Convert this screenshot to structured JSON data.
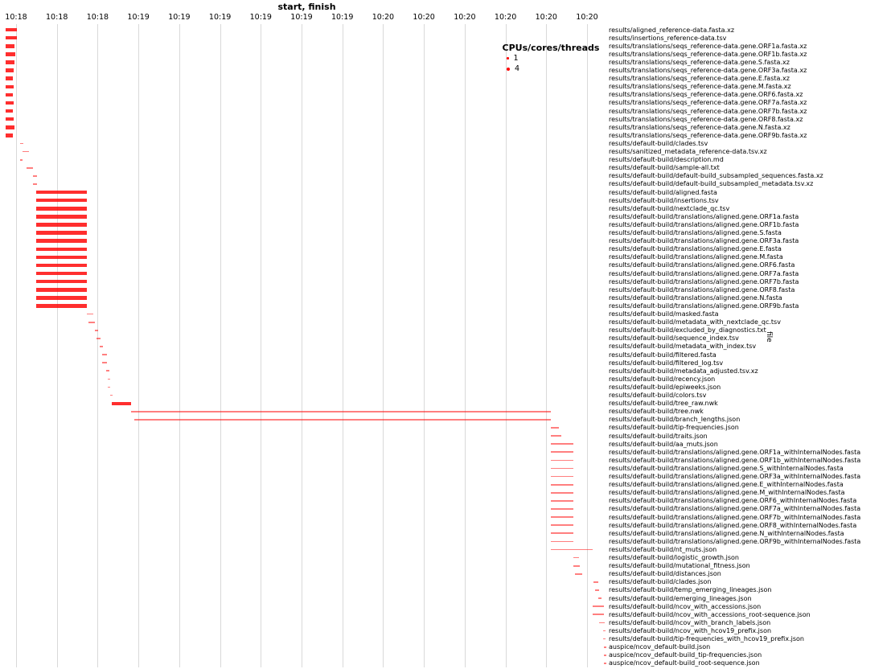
{
  "chart_data": {
    "type": "gantt",
    "title": "start, finish",
    "ylabel_right": "file",
    "time_axis_note": "clock times, ticks every 10 seconds",
    "tick_interval_sec": 10,
    "x_range_sec": [
      27,
      176
    ],
    "bar_color": "#ff0000",
    "x_ticks": [
      {
        "sec": 30,
        "label": "10:18"
      },
      {
        "sec": 40,
        "label": "10:18"
      },
      {
        "sec": 50,
        "label": "10:18"
      },
      {
        "sec": 60,
        "label": "10:19"
      },
      {
        "sec": 70,
        "label": "10:19"
      },
      {
        "sec": 80,
        "label": "10:19"
      },
      {
        "sec": 90,
        "label": "10:19"
      },
      {
        "sec": 100,
        "label": "10:19"
      },
      {
        "sec": 110,
        "label": "10:19"
      },
      {
        "sec": 120,
        "label": "10:20"
      },
      {
        "sec": 130,
        "label": "10:20"
      },
      {
        "sec": 140,
        "label": "10:20"
      },
      {
        "sec": 150,
        "label": "10:20"
      },
      {
        "sec": 160,
        "label": "10:20"
      },
      {
        "sec": 170,
        "label": "10:20"
      }
    ],
    "legend": {
      "title": "CPUs/cores/threads",
      "items": [
        {
          "label": "1",
          "size": 2.5
        },
        {
          "label": "4",
          "size": 4
        }
      ]
    },
    "rows": [
      {
        "file": "results/aligned_reference-data.fasta.xz",
        "start": 27.4,
        "end": 30.2,
        "threads": 4
      },
      {
        "file": "results/insertions_reference-data.tsv",
        "start": 27.4,
        "end": 30.2,
        "threads": 4
      },
      {
        "file": "results/translations/seqs_reference-data.gene.ORF1a.fasta.xz",
        "start": 27.4,
        "end": 29.7,
        "threads": 4
      },
      {
        "file": "results/translations/seqs_reference-data.gene.ORF1b.fasta.xz",
        "start": 27.4,
        "end": 29.8,
        "threads": 4
      },
      {
        "file": "results/translations/seqs_reference-data.gene.S.fasta.xz",
        "start": 27.4,
        "end": 29.6,
        "threads": 4
      },
      {
        "file": "results/translations/seqs_reference-data.gene.ORF3a.fasta.xz",
        "start": 27.4,
        "end": 29.4,
        "threads": 4
      },
      {
        "file": "results/translations/seqs_reference-data.gene.E.fasta.xz",
        "start": 27.4,
        "end": 29.3,
        "threads": 4
      },
      {
        "file": "results/translations/seqs_reference-data.gene.M.fasta.xz",
        "start": 27.4,
        "end": 29.5,
        "threads": 4
      },
      {
        "file": "results/translations/seqs_reference-data.gene.ORF6.fasta.xz",
        "start": 27.4,
        "end": 29.3,
        "threads": 4
      },
      {
        "file": "results/translations/seqs_reference-data.gene.ORF7a.fasta.xz",
        "start": 27.4,
        "end": 29.5,
        "threads": 4
      },
      {
        "file": "results/translations/seqs_reference-data.gene.ORF7b.fasta.xz",
        "start": 27.4,
        "end": 29.3,
        "threads": 4
      },
      {
        "file": "results/translations/seqs_reference-data.gene.ORF8.fasta.xz",
        "start": 27.4,
        "end": 29.5,
        "threads": 4
      },
      {
        "file": "results/translations/seqs_reference-data.gene.N.fasta.xz",
        "start": 27.4,
        "end": 29.6,
        "threads": 4
      },
      {
        "file": "results/translations/seqs_reference-data.gene.ORF9b.fasta.xz",
        "start": 27.4,
        "end": 29.3,
        "threads": 4
      },
      {
        "file": "results/default-build/clades.tsv",
        "start": 31.0,
        "end": 31.8,
        "threads": 1
      },
      {
        "file": "results/sanitized_metadata_reference-data.tsv.xz",
        "start": 31.6,
        "end": 33.2,
        "threads": 1
      },
      {
        "file": "results/default-build/description.md",
        "start": 31.0,
        "end": 31.6,
        "threads": 1
      },
      {
        "file": "results/default-build/sample-all.txt",
        "start": 32.6,
        "end": 34.2,
        "threads": 1
      },
      {
        "file": "results/default-build/default-build_subsampled_sequences.fasta.xz",
        "start": 34.2,
        "end": 35.2,
        "threads": 1
      },
      {
        "file": "results/default-build/default-build_subsampled_metadata.tsv.xz",
        "start": 34.2,
        "end": 35.2,
        "threads": 1
      },
      {
        "file": "results/default-build/aligned.fasta",
        "start": 35.0,
        "end": 47.4,
        "threads": 4
      },
      {
        "file": "results/default-build/insertions.tsv",
        "start": 35.0,
        "end": 47.4,
        "threads": 4
      },
      {
        "file": "results/default-build/nextclade_qc.tsv",
        "start": 35.0,
        "end": 47.4,
        "threads": 4
      },
      {
        "file": "results/default-build/translations/aligned.gene.ORF1a.fasta",
        "start": 35.0,
        "end": 47.4,
        "threads": 4
      },
      {
        "file": "results/default-build/translations/aligned.gene.ORF1b.fasta",
        "start": 35.0,
        "end": 47.4,
        "threads": 4
      },
      {
        "file": "results/default-build/translations/aligned.gene.S.fasta",
        "start": 35.0,
        "end": 47.4,
        "threads": 4
      },
      {
        "file": "results/default-build/translations/aligned.gene.ORF3a.fasta",
        "start": 35.0,
        "end": 47.4,
        "threads": 4
      },
      {
        "file": "results/default-build/translations/aligned.gene.E.fasta",
        "start": 35.0,
        "end": 47.4,
        "threads": 4
      },
      {
        "file": "results/default-build/translations/aligned.gene.M.fasta",
        "start": 35.0,
        "end": 47.4,
        "threads": 4
      },
      {
        "file": "results/default-build/translations/aligned.gene.ORF6.fasta",
        "start": 35.0,
        "end": 47.4,
        "threads": 4
      },
      {
        "file": "results/default-build/translations/aligned.gene.ORF7a.fasta",
        "start": 35.0,
        "end": 47.4,
        "threads": 4
      },
      {
        "file": "results/default-build/translations/aligned.gene.ORF7b.fasta",
        "start": 35.0,
        "end": 47.4,
        "threads": 4
      },
      {
        "file": "results/default-build/translations/aligned.gene.ORF8.fasta",
        "start": 35.0,
        "end": 47.4,
        "threads": 4
      },
      {
        "file": "results/default-build/translations/aligned.gene.N.fasta",
        "start": 35.0,
        "end": 47.4,
        "threads": 4
      },
      {
        "file": "results/default-build/translations/aligned.gene.ORF9b.fasta",
        "start": 35.0,
        "end": 47.4,
        "threads": 4
      },
      {
        "file": "results/default-build/masked.fasta",
        "start": 47.4,
        "end": 49.0,
        "threads": 1
      },
      {
        "file": "results/default-build/metadata_with_nextclade_qc.tsv",
        "start": 47.8,
        "end": 49.4,
        "threads": 1
      },
      {
        "file": "results/default-build/excluded_by_diagnostics.txt",
        "start": 49.4,
        "end": 50.2,
        "threads": 1
      },
      {
        "file": "results/default-build/sequence_index.tsv",
        "start": 49.8,
        "end": 50.8,
        "threads": 1
      },
      {
        "file": "results/default-build/metadata_with_index.tsv",
        "start": 50.4,
        "end": 51.2,
        "threads": 1
      },
      {
        "file": "results/default-build/filtered.fasta",
        "start": 51.0,
        "end": 52.2,
        "threads": 1
      },
      {
        "file": "results/default-build/filtered_log.tsv",
        "start": 51.0,
        "end": 52.2,
        "threads": 1
      },
      {
        "file": "results/default-build/metadata_adjusted.tsv.xz",
        "start": 52.0,
        "end": 52.8,
        "threads": 1
      },
      {
        "file": "results/default-build/recency.json",
        "start": 52.4,
        "end": 53.0,
        "threads": 1
      },
      {
        "file": "results/default-build/epiweeks.json",
        "start": 52.4,
        "end": 53.0,
        "threads": 1
      },
      {
        "file": "results/default-build/colors.tsv",
        "start": 53.0,
        "end": 53.6,
        "threads": 1
      },
      {
        "file": "results/default-build/tree_raw.nwk",
        "start": 53.5,
        "end": 58.2,
        "threads": 4
      },
      {
        "file": "results/default-build/tree.nwk",
        "start": 58.2,
        "end": 161.2,
        "threads": 1
      },
      {
        "file": "results/default-build/branch_lengths.json",
        "start": 59.0,
        "end": 161.2,
        "threads": 1
      },
      {
        "file": "results/default-build/tip-frequencies.json",
        "start": 161.2,
        "end": 163.2,
        "threads": 1
      },
      {
        "file": "results/default-build/traits.json",
        "start": 161.2,
        "end": 163.6,
        "threads": 1
      },
      {
        "file": "results/default-build/aa_muts.json",
        "start": 161.2,
        "end": 166.6,
        "threads": 1
      },
      {
        "file": "results/default-build/translations/aligned.gene.ORF1a_withInternalNodes.fasta",
        "start": 161.2,
        "end": 166.6,
        "threads": 1
      },
      {
        "file": "results/default-build/translations/aligned.gene.ORF1b_withInternalNodes.fasta",
        "start": 161.2,
        "end": 166.6,
        "threads": 1
      },
      {
        "file": "results/default-build/translations/aligned.gene.S_withInternalNodes.fasta",
        "start": 161.2,
        "end": 166.6,
        "threads": 1
      },
      {
        "file": "results/default-build/translations/aligned.gene.ORF3a_withInternalNodes.fasta",
        "start": 161.2,
        "end": 166.6,
        "threads": 1
      },
      {
        "file": "results/default-build/translations/aligned.gene.E_withInternalNodes.fasta",
        "start": 161.2,
        "end": 166.6,
        "threads": 1
      },
      {
        "file": "results/default-build/translations/aligned.gene.M_withInternalNodes.fasta",
        "start": 161.2,
        "end": 166.6,
        "threads": 1
      },
      {
        "file": "results/default-build/translations/aligned.gene.ORF6_withInternalNodes.fasta",
        "start": 161.2,
        "end": 166.6,
        "threads": 1
      },
      {
        "file": "results/default-build/translations/aligned.gene.ORF7a_withInternalNodes.fasta",
        "start": 161.2,
        "end": 166.6,
        "threads": 1
      },
      {
        "file": "results/default-build/translations/aligned.gene.ORF7b_withInternalNodes.fasta",
        "start": 161.2,
        "end": 166.6,
        "threads": 1
      },
      {
        "file": "results/default-build/translations/aligned.gene.ORF8_withInternalNodes.fasta",
        "start": 161.2,
        "end": 166.6,
        "threads": 1
      },
      {
        "file": "results/default-build/translations/aligned.gene.N_withInternalNodes.fasta",
        "start": 161.2,
        "end": 166.6,
        "threads": 1
      },
      {
        "file": "results/default-build/translations/aligned.gene.ORF9b_withInternalNodes.fasta",
        "start": 161.2,
        "end": 166.6,
        "threads": 1
      },
      {
        "file": "results/default-build/nt_muts.json",
        "start": 161.2,
        "end": 171.4,
        "threads": 1
      },
      {
        "file": "results/default-build/logistic_growth.json",
        "start": 166.6,
        "end": 168.0,
        "threads": 1
      },
      {
        "file": "results/default-build/mutational_fitness.json",
        "start": 166.6,
        "end": 168.2,
        "threads": 1
      },
      {
        "file": "results/default-build/distances.json",
        "start": 167.0,
        "end": 168.8,
        "threads": 1
      },
      {
        "file": "results/default-build/clades.json",
        "start": 171.6,
        "end": 172.8,
        "threads": 1
      },
      {
        "file": "results/default-build/temp_emerging_lineages.json",
        "start": 172.0,
        "end": 173.0,
        "threads": 1
      },
      {
        "file": "results/default-build/emerging_lineages.json",
        "start": 172.8,
        "end": 173.6,
        "threads": 1
      },
      {
        "file": "results/default-build/ncov_with_accessions.json",
        "start": 171.4,
        "end": 174.2,
        "threads": 1
      },
      {
        "file": "results/default-build/ncov_with_accessions_root-sequence.json",
        "start": 171.4,
        "end": 174.2,
        "threads": 1
      },
      {
        "file": "results/default-build/ncov_with_branch_labels.json",
        "start": 173.0,
        "end": 174.4,
        "threads": 1
      },
      {
        "file": "results/default-build/ncov_with_hcov19_prefix.json",
        "start": 174.0,
        "end": 174.6,
        "threads": 1
      },
      {
        "file": "results/default-build/tip-frequencies_with_hcov19_prefix.json",
        "start": 174.0,
        "end": 174.5,
        "threads": 1
      },
      {
        "file": "auspice/ncov_default-build.json",
        "start": 174.2,
        "end": 174.7,
        "threads": 1
      },
      {
        "file": "auspice/ncov_default-build_tip-frequencies.json",
        "start": 174.2,
        "end": 174.7,
        "threads": 1
      },
      {
        "file": "auspice/ncov_default-build_root-sequence.json",
        "start": 174.2,
        "end": 174.7,
        "threads": 1
      }
    ]
  }
}
